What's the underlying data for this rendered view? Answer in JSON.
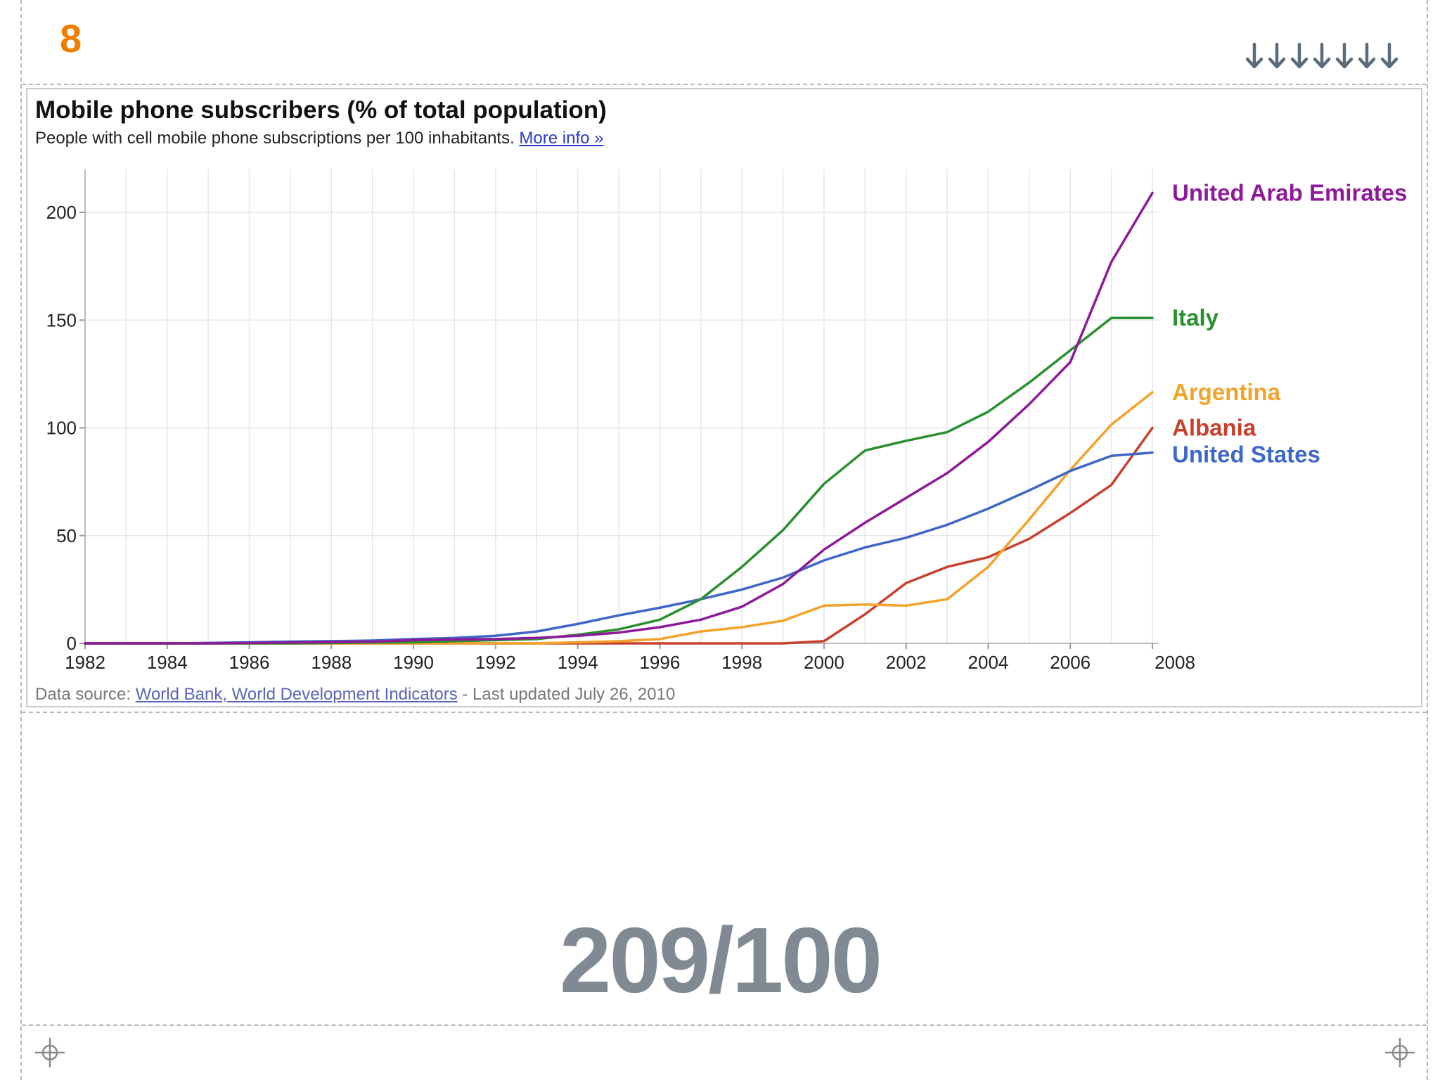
{
  "slide": {
    "number": "8",
    "big_value": "209/100"
  },
  "chart": {
    "subtitle_text": "People with cell mobile phone subscriptions per 100 inhabitants.",
    "more_info_label": "More info »",
    "source_prefix": "Data source: ",
    "source_link_label": "World Bank, World Development Indicators",
    "source_suffix": " - Last updated July 26, 2010"
  },
  "chart_data": {
    "type": "line",
    "title": "Mobile phone subscribers (% of total population)",
    "xlabel": "",
    "ylabel": "",
    "xlim": [
      1982,
      2008
    ],
    "ylim": [
      0,
      220
    ],
    "x_ticks": [
      1982,
      1984,
      1986,
      1988,
      1990,
      1992,
      1994,
      1996,
      1998,
      2000,
      2002,
      2004,
      2006,
      2008
    ],
    "y_ticks": [
      0,
      50,
      100,
      150,
      200
    ],
    "grid": true,
    "legend": "right, labels at line ends",
    "x": [
      1982,
      1983,
      1984,
      1985,
      1986,
      1987,
      1988,
      1989,
      1990,
      1991,
      1992,
      1993,
      1994,
      1995,
      1996,
      1997,
      1998,
      1999,
      2000,
      2001,
      2002,
      2003,
      2004,
      2005,
      2006,
      2007,
      2008
    ],
    "series": [
      {
        "name": "United Arab Emirates",
        "color": "#8e1a9a",
        "values": [
          0,
          0,
          0,
          0,
          0.2,
          0.4,
          0.6,
          0.8,
          1.5,
          1.8,
          2,
          2.5,
          3.5,
          5,
          7.5,
          11,
          17,
          27.5,
          43.5,
          56,
          67.5,
          79,
          93.5,
          111,
          130.5,
          177,
          209
        ]
      },
      {
        "name": "Italy",
        "color": "#2a8f2e",
        "values": [
          0,
          0,
          0,
          0,
          0,
          0,
          0.2,
          0.4,
          0.5,
          1,
          1.5,
          2,
          4,
          6.5,
          11,
          20.5,
          35.5,
          52.5,
          74,
          89.5,
          94,
          98,
          107.5,
          121,
          136,
          151,
          151
        ]
      },
      {
        "name": "Argentina",
        "color": "#f2a32a",
        "values": [
          0,
          0,
          0,
          0,
          0,
          0,
          0,
          0,
          0,
          0,
          0,
          0,
          0.5,
          1,
          2,
          5.5,
          7.5,
          10.5,
          17.5,
          18,
          17.5,
          20.5,
          35.5,
          57.5,
          80.5,
          101.5,
          116.5
        ]
      },
      {
        "name": "Albania",
        "color": "#c8412f",
        "values": [
          0,
          0,
          0,
          0,
          0,
          0,
          0,
          0,
          0,
          0,
          0,
          0,
          0,
          0,
          0,
          0,
          0,
          0,
          1,
          13.5,
          28,
          35.5,
          40,
          48.5,
          60.5,
          73.5,
          100
        ]
      },
      {
        "name": "United States",
        "color": "#3f67c8",
        "values": [
          0,
          0,
          0,
          0.2,
          0.5,
          0.8,
          1,
          1.3,
          2,
          2.5,
          3.5,
          5.5,
          9,
          13,
          16.5,
          20.5,
          25,
          30.5,
          38.5,
          44.5,
          49,
          55,
          62.5,
          71,
          80,
          87,
          88.5
        ]
      }
    ]
  }
}
